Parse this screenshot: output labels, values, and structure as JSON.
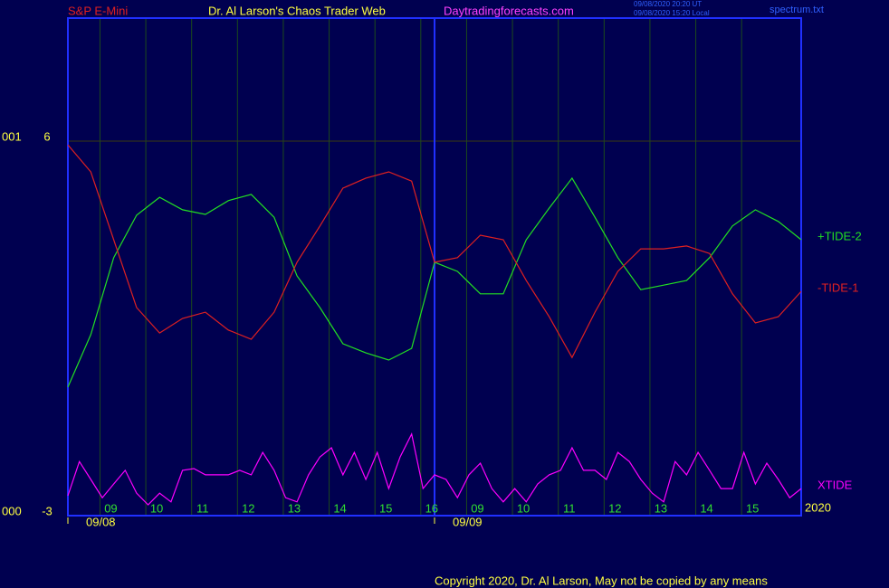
{
  "chart_data": {
    "type": "line",
    "instrument": "S&P E-Mini",
    "title": "Dr. Al Larson's Chaos Trader Web",
    "website": "Daytradingforecasts.com",
    "timestamps": [
      "09/08/2020 20:20 UT",
      "09/08/2020 15:20 Local"
    ],
    "file": "spectrum.txt",
    "year_label": "2020",
    "copyright": "Copyright 2020, Dr. Al Larson, May not be copied by any means",
    "side_labels": [
      "001",
      "000"
    ],
    "xlim": [
      0,
      16
    ],
    "ylim": [
      -3,
      9
    ],
    "yticks": [
      6,
      -3
    ],
    "xticks": [
      {
        "value": 0.7,
        "label": "09"
      },
      {
        "value": 1.7,
        "label": "10"
      },
      {
        "value": 2.7,
        "label": "11"
      },
      {
        "value": 3.7,
        "label": "12"
      },
      {
        "value": 4.7,
        "label": "13"
      },
      {
        "value": 5.7,
        "label": "14"
      },
      {
        "value": 6.7,
        "label": "15"
      },
      {
        "value": 7.7,
        "label": "16"
      },
      {
        "value": 8.7,
        "label": "09"
      },
      {
        "value": 9.7,
        "label": "10"
      },
      {
        "value": 10.7,
        "label": "11"
      },
      {
        "value": 11.7,
        "label": "12"
      },
      {
        "value": 12.7,
        "label": "13"
      },
      {
        "value": 13.7,
        "label": "14"
      },
      {
        "value": 14.7,
        "label": "15"
      }
    ],
    "date_labels": [
      {
        "value": 0,
        "label": "09/08"
      },
      {
        "value": 8,
        "label": "09/09"
      }
    ],
    "dividers": [
      8
    ],
    "grid": true,
    "series": [
      {
        "name": "+TIDE-2",
        "color": "#22e022",
        "x": [
          0,
          0.5,
          1,
          1.5,
          2,
          2.5,
          3,
          3.5,
          4,
          4.5,
          5,
          5.5,
          6,
          6.5,
          7,
          7.5,
          8,
          8.5,
          9,
          9.5,
          10,
          10.5,
          11,
          11.5,
          12,
          12.5,
          13,
          13.5,
          14,
          14.5,
          15,
          15.5,
          16
        ],
        "values": [
          0.09,
          1.35,
          3.2,
          4.22,
          4.65,
          4.35,
          4.24,
          4.57,
          4.72,
          4.17,
          2.76,
          2.0,
          1.13,
          0.91,
          0.74,
          1.02,
          3.09,
          2.87,
          2.33,
          2.33,
          3.63,
          4.39,
          5.11,
          4.17,
          3.2,
          2.43,
          2.54,
          2.65,
          3.2,
          3.96,
          4.35,
          4.07,
          3.63
        ]
      },
      {
        "name": "-TIDE-1",
        "color": "#e02020",
        "x": [
          0,
          0.5,
          1,
          1.5,
          2,
          2.5,
          3,
          3.5,
          4,
          4.5,
          5,
          5.5,
          6,
          6.5,
          7,
          7.5,
          8,
          8.5,
          9,
          9.5,
          10,
          10.5,
          11,
          11.5,
          12,
          12.5,
          13,
          13.5,
          14,
          14.5,
          15,
          15.5,
          16
        ],
        "values": [
          5.91,
          5.26,
          3.63,
          2.0,
          1.39,
          1.74,
          1.89,
          1.46,
          1.24,
          1.89,
          3.09,
          3.96,
          4.87,
          5.11,
          5.26,
          5.04,
          3.09,
          3.2,
          3.74,
          3.63,
          2.65,
          1.78,
          0.8,
          1.89,
          2.87,
          3.41,
          3.41,
          3.48,
          3.3,
          2.33,
          1.63,
          1.78,
          2.39
        ]
      },
      {
        "name": "XTIDE",
        "color": "#ff00ff",
        "x": [
          0,
          0.25,
          0.5,
          0.75,
          1,
          1.25,
          1.5,
          1.75,
          2,
          2.25,
          2.5,
          2.75,
          3,
          3.25,
          3.5,
          3.75,
          4,
          4.25,
          4.5,
          4.75,
          5,
          5.25,
          5.5,
          5.75,
          6,
          6.25,
          6.5,
          6.75,
          7,
          7.25,
          7.5,
          7.75,
          8,
          8.25,
          8.5,
          8.75,
          9,
          9.25,
          9.5,
          9.75,
          10,
          10.25,
          10.5,
          10.75,
          11,
          11.25,
          11.5,
          11.75,
          12,
          12.25,
          12.5,
          12.75,
          13,
          13.25,
          13.5,
          13.75,
          14,
          14.25,
          14.5,
          14.75,
          15,
          15.25,
          15.5,
          15.75,
          16
        ],
        "values": [
          -2.52,
          -1.7,
          -2.13,
          -2.57,
          -2.24,
          -1.91,
          -2.46,
          -2.74,
          -2.46,
          -2.67,
          -1.91,
          -1.87,
          -2.02,
          -2.02,
          -2.02,
          -1.91,
          -2.02,
          -1.48,
          -1.91,
          -2.57,
          -2.67,
          -2.02,
          -1.59,
          -1.37,
          -2.02,
          -1.48,
          -2.13,
          -1.48,
          -2.35,
          -1.59,
          -1.04,
          -2.35,
          -2.02,
          -2.13,
          -2.57,
          -2.02,
          -1.74,
          -2.35,
          -2.67,
          -2.35,
          -2.67,
          -2.24,
          -2.02,
          -1.91,
          -1.37,
          -1.91,
          -1.91,
          -2.13,
          -1.48,
          -1.7,
          -2.13,
          -2.46,
          -2.67,
          -1.7,
          -2.02,
          -1.48,
          -1.91,
          -2.35,
          -2.35,
          -1.48,
          -2.24,
          -1.74,
          -2.13,
          -2.57,
          -2.35
        ]
      }
    ]
  }
}
